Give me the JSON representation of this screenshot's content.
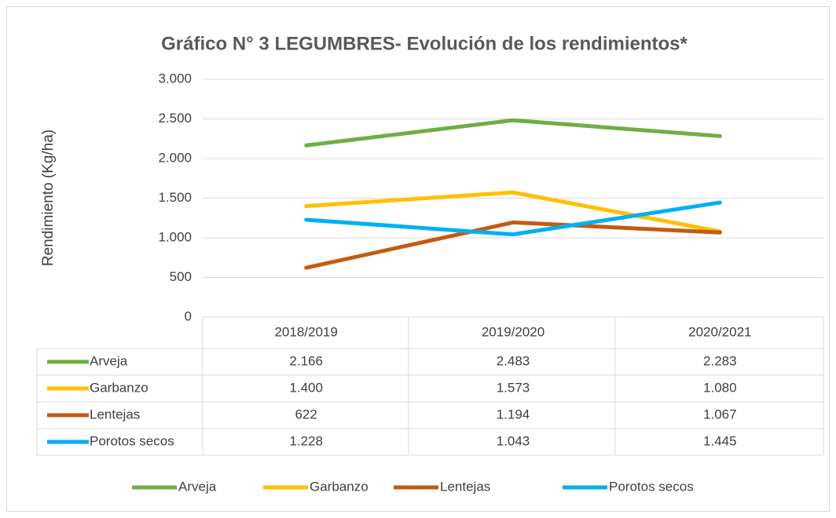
{
  "chart_data": {
    "type": "line",
    "title": "Gráfico N° 3  LEGUMBRES- Evolución de los rendimientos*",
    "y_label": "Rendimiento (Kg/ha)",
    "categories": [
      "2018/2019",
      "2019/2020",
      "2020/2021"
    ],
    "series": [
      {
        "name": "Arveja",
        "color": "#70ad47",
        "values": [
          2166,
          2483,
          2283
        ],
        "value_labels": [
          "2.166",
          "2.483",
          "2.283"
        ]
      },
      {
        "name": "Garbanzo",
        "color": "#ffc000",
        "values": [
          1400,
          1573,
          1080
        ],
        "value_labels": [
          "1.400",
          "1.573",
          "1.080"
        ]
      },
      {
        "name": "Lentejas",
        "color": "#c55a11",
        "values": [
          622,
          1194,
          1067
        ],
        "value_labels": [
          "622",
          "1.194",
          "1.067"
        ]
      },
      {
        "name": "Porotos secos",
        "color": "#00b0f0",
        "values": [
          1228,
          1043,
          1445
        ],
        "value_labels": [
          "1.228",
          "1.043",
          "1.445"
        ]
      }
    ],
    "ylim": [
      0,
      3000
    ],
    "yticks": [
      0,
      500,
      {
        "value": 1000,
        "label": "1.000"
      },
      {
        "value": 1500,
        "label": "1.500"
      },
      {
        "value": 2000,
        "label": "2.000"
      },
      {
        "value": 2500,
        "label": "2.500"
      },
      {
        "value": 3000,
        "label": "3.000"
      }
    ],
    "grid": true,
    "legend": "bottom"
  }
}
